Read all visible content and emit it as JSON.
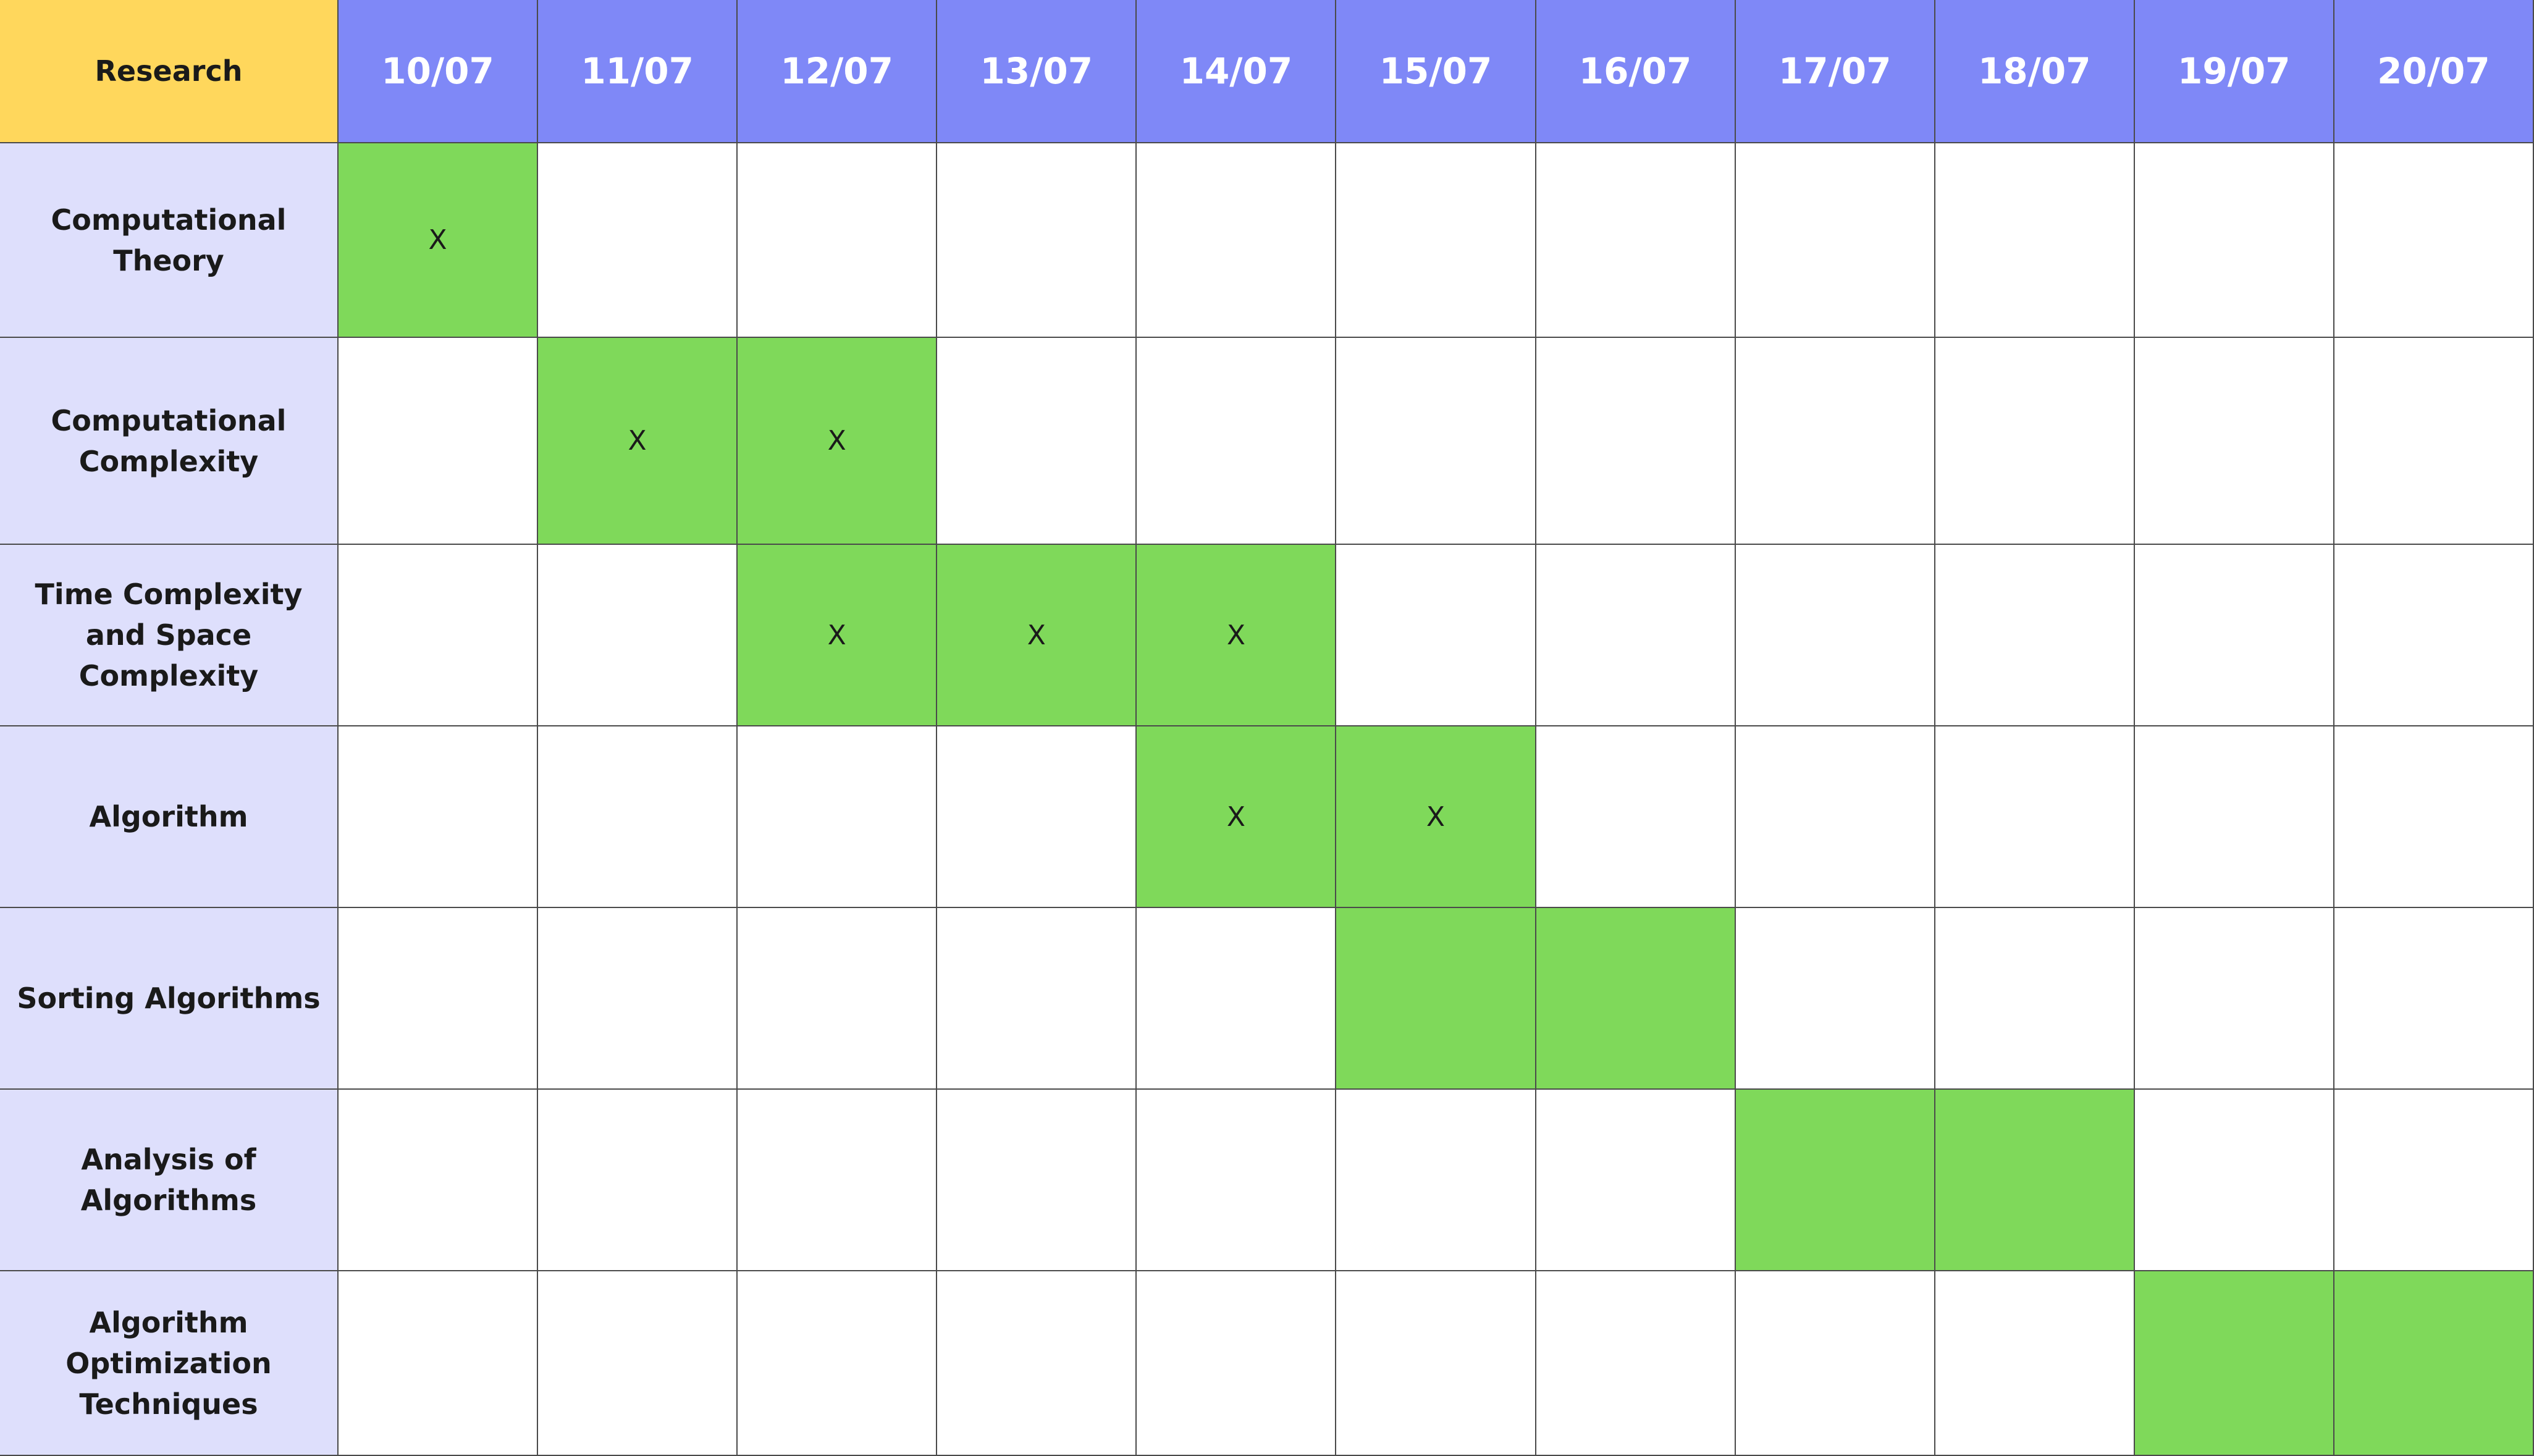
{
  "colors": {
    "corner_bg": "#ffd75c",
    "header_bg": "#7f88f7",
    "task_label_bg": "#dedffc",
    "active_cell_bg": "#7fd95a",
    "empty_cell_bg": "#ffffff",
    "grid_line": "#4a4a4a"
  },
  "table": {
    "corner_label": "Research",
    "dates": [
      "10/07",
      "11/07",
      "12/07",
      "13/07",
      "14/07",
      "15/07",
      "16/07",
      "17/07",
      "18/07",
      "19/07",
      "20/07"
    ],
    "rows": [
      {
        "task": "Computational Theory",
        "cells": [
          {
            "active": true,
            "mark": "X"
          },
          {
            "active": false,
            "mark": ""
          },
          {
            "active": false,
            "mark": ""
          },
          {
            "active": false,
            "mark": ""
          },
          {
            "active": false,
            "mark": ""
          },
          {
            "active": false,
            "mark": ""
          },
          {
            "active": false,
            "mark": ""
          },
          {
            "active": false,
            "mark": ""
          },
          {
            "active": false,
            "mark": ""
          },
          {
            "active": false,
            "mark": ""
          },
          {
            "active": false,
            "mark": ""
          }
        ]
      },
      {
        "task": "Computational Complexity",
        "cells": [
          {
            "active": false,
            "mark": ""
          },
          {
            "active": true,
            "mark": "X"
          },
          {
            "active": true,
            "mark": "X"
          },
          {
            "active": false,
            "mark": ""
          },
          {
            "active": false,
            "mark": ""
          },
          {
            "active": false,
            "mark": ""
          },
          {
            "active": false,
            "mark": ""
          },
          {
            "active": false,
            "mark": ""
          },
          {
            "active": false,
            "mark": ""
          },
          {
            "active": false,
            "mark": ""
          },
          {
            "active": false,
            "mark": ""
          }
        ]
      },
      {
        "task": "Time Complexity and Space Complexity",
        "cells": [
          {
            "active": false,
            "mark": ""
          },
          {
            "active": false,
            "mark": ""
          },
          {
            "active": true,
            "mark": "X"
          },
          {
            "active": true,
            "mark": "X"
          },
          {
            "active": true,
            "mark": "X"
          },
          {
            "active": false,
            "mark": ""
          },
          {
            "active": false,
            "mark": ""
          },
          {
            "active": false,
            "mark": ""
          },
          {
            "active": false,
            "mark": ""
          },
          {
            "active": false,
            "mark": ""
          },
          {
            "active": false,
            "mark": ""
          }
        ]
      },
      {
        "task": "Algorithm",
        "cells": [
          {
            "active": false,
            "mark": ""
          },
          {
            "active": false,
            "mark": ""
          },
          {
            "active": false,
            "mark": ""
          },
          {
            "active": false,
            "mark": ""
          },
          {
            "active": true,
            "mark": "X"
          },
          {
            "active": true,
            "mark": "X"
          },
          {
            "active": false,
            "mark": ""
          },
          {
            "active": false,
            "mark": ""
          },
          {
            "active": false,
            "mark": ""
          },
          {
            "active": false,
            "mark": ""
          },
          {
            "active": false,
            "mark": ""
          }
        ]
      },
      {
        "task": "Sorting Algorithms",
        "cells": [
          {
            "active": false,
            "mark": ""
          },
          {
            "active": false,
            "mark": ""
          },
          {
            "active": false,
            "mark": ""
          },
          {
            "active": false,
            "mark": ""
          },
          {
            "active": false,
            "mark": ""
          },
          {
            "active": true,
            "mark": ""
          },
          {
            "active": true,
            "mark": ""
          },
          {
            "active": false,
            "mark": ""
          },
          {
            "active": false,
            "mark": ""
          },
          {
            "active": false,
            "mark": ""
          },
          {
            "active": false,
            "mark": ""
          }
        ]
      },
      {
        "task": "Analysis of Algorithms",
        "cells": [
          {
            "active": false,
            "mark": ""
          },
          {
            "active": false,
            "mark": ""
          },
          {
            "active": false,
            "mark": ""
          },
          {
            "active": false,
            "mark": ""
          },
          {
            "active": false,
            "mark": ""
          },
          {
            "active": false,
            "mark": ""
          },
          {
            "active": false,
            "mark": ""
          },
          {
            "active": true,
            "mark": ""
          },
          {
            "active": true,
            "mark": ""
          },
          {
            "active": false,
            "mark": ""
          },
          {
            "active": false,
            "mark": ""
          }
        ]
      },
      {
        "task": "Algorithm Optimization Techniques",
        "cells": [
          {
            "active": false,
            "mark": ""
          },
          {
            "active": false,
            "mark": ""
          },
          {
            "active": false,
            "mark": ""
          },
          {
            "active": false,
            "mark": ""
          },
          {
            "active": false,
            "mark": ""
          },
          {
            "active": false,
            "mark": ""
          },
          {
            "active": false,
            "mark": ""
          },
          {
            "active": false,
            "mark": ""
          },
          {
            "active": false,
            "mark": ""
          },
          {
            "active": true,
            "mark": ""
          },
          {
            "active": true,
            "mark": ""
          }
        ]
      }
    ]
  }
}
